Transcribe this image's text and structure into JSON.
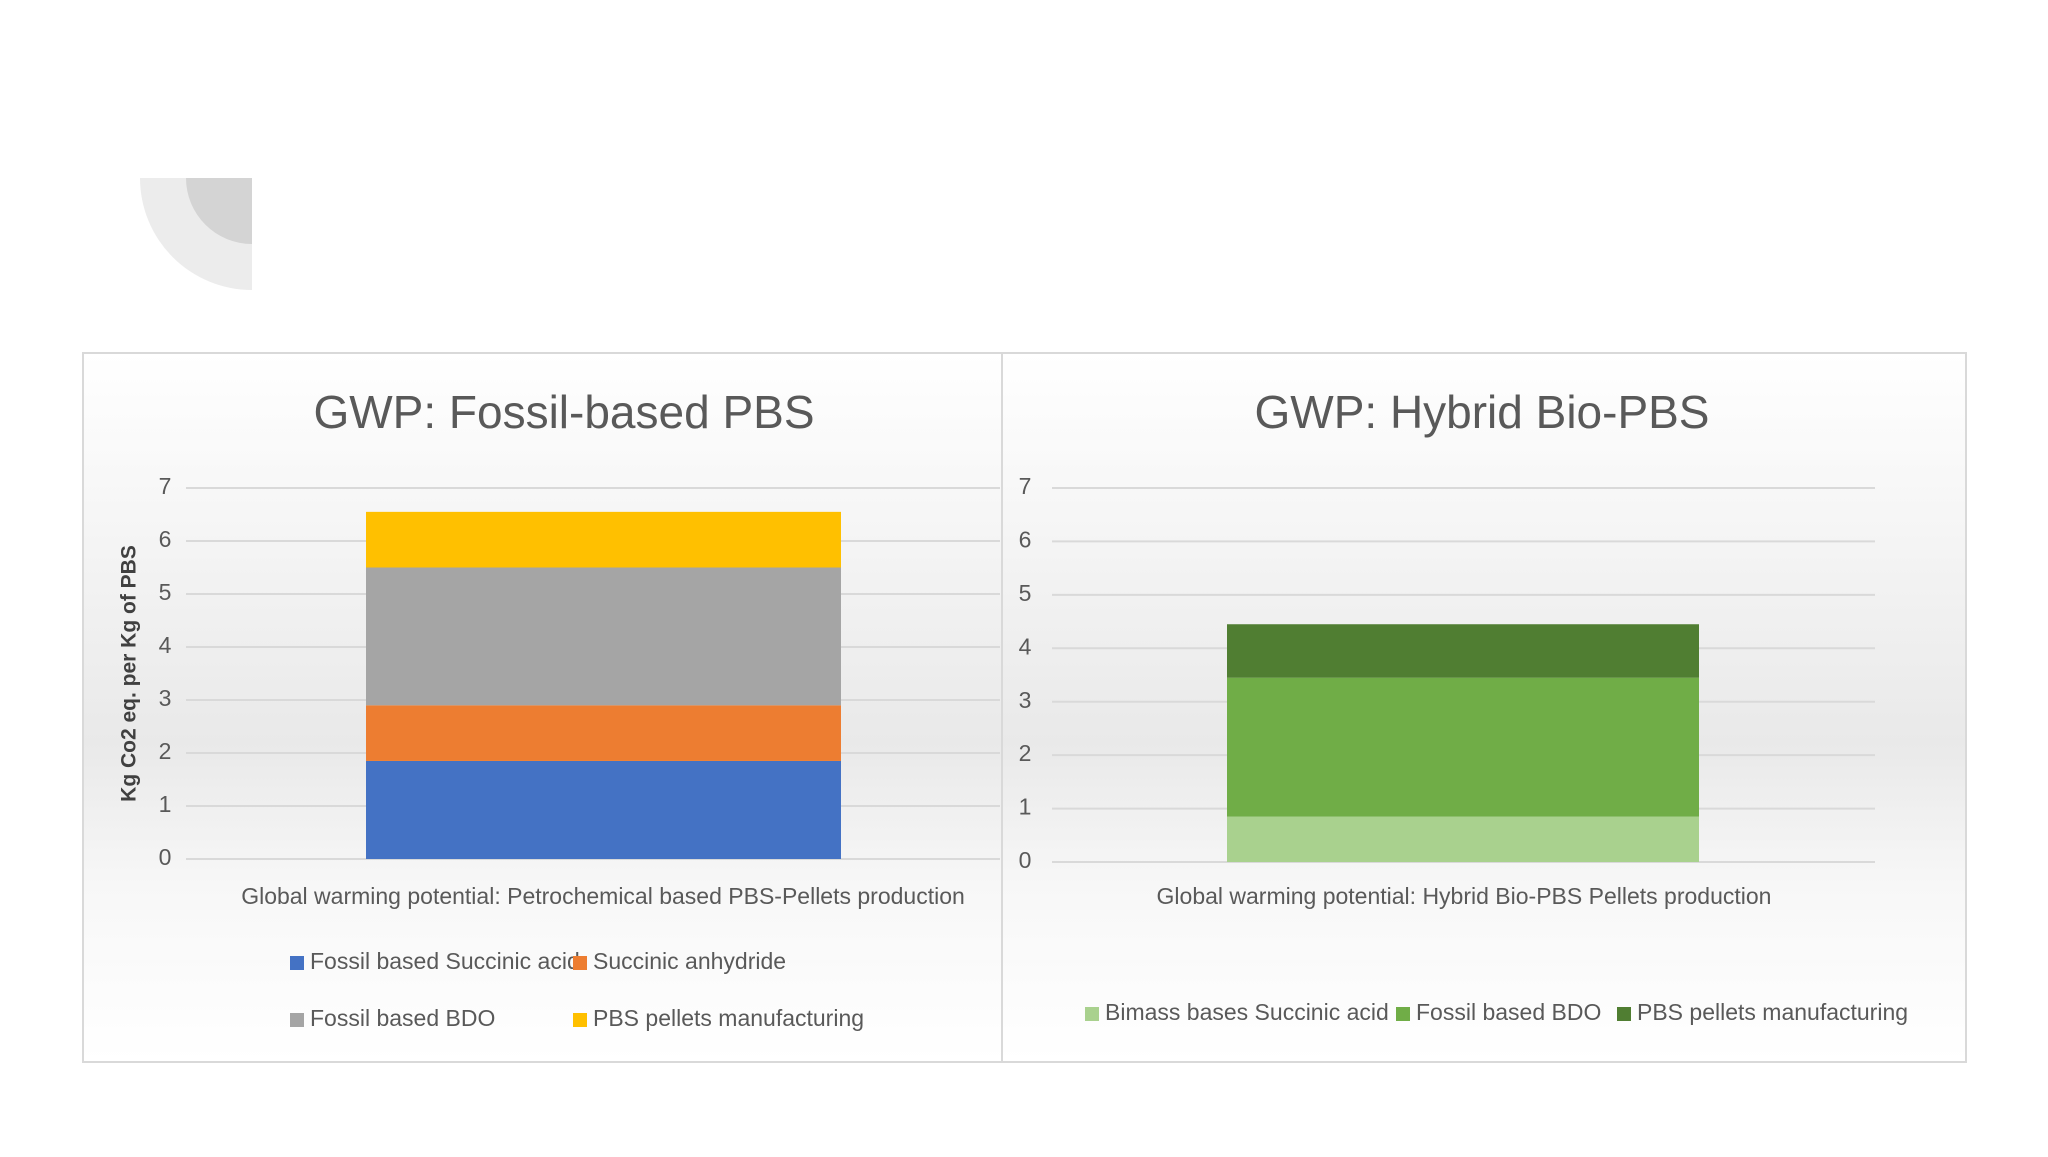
{
  "chart_data": [
    {
      "type": "bar",
      "stacked": true,
      "title": "GWP: Fossil-based PBS",
      "y_label": "Kg Co2 eq. per Kg of PBS",
      "categories": [
        "Global warming potential: Petrochemical based PBS-Pellets production"
      ],
      "series": [
        {
          "name": "Fossil based Succinic acid",
          "color": "#4472c4",
          "values": [
            1.85
          ]
        },
        {
          "name": "Succinic anhydride",
          "color": "#ed7d31",
          "values": [
            1.05
          ]
        },
        {
          "name": "Fossil based BDO",
          "color": "#a5a5a5",
          "values": [
            2.6
          ]
        },
        {
          "name": "PBS pellets manufacturing",
          "color": "#ffc000",
          "values": [
            1.05
          ]
        }
      ],
      "ylim": [
        0,
        7
      ],
      "yticks": [
        0,
        1,
        2,
        3,
        4,
        5,
        6,
        7
      ],
      "grid": true,
      "legend": "bottom"
    },
    {
      "type": "bar",
      "stacked": true,
      "title": "GWP: Hybrid Bio-PBS",
      "categories": [
        "Global warming potential: Hybrid Bio-PBS Pellets production"
      ],
      "series": [
        {
          "name": "Bimass bases Succinic acid",
          "color": "#a9d18e",
          "values": [
            0.85
          ]
        },
        {
          "name": "Fossil based BDO",
          "color": "#70ad47",
          "values": [
            2.6
          ]
        },
        {
          "name": "PBS pellets manufacturing",
          "color": "#507e32",
          "values": [
            1.0
          ]
        }
      ],
      "ylim": [
        0,
        7
      ],
      "yticks": [
        0,
        1,
        2,
        3,
        4,
        5,
        6,
        7
      ],
      "grid": true,
      "legend": "bottom"
    }
  ]
}
